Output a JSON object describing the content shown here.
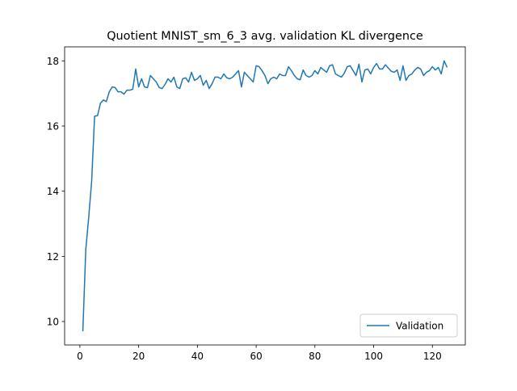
{
  "chart_data": {
    "type": "line",
    "title": "Quotient MNIST_sm_6_3 avg. validation KL divergence",
    "x": [
      1,
      2,
      3,
      4,
      5,
      6,
      7,
      8,
      9,
      10,
      11,
      12,
      13,
      14,
      15,
      16,
      17,
      18,
      19,
      20,
      21,
      22,
      23,
      24,
      25,
      26,
      27,
      28,
      29,
      30,
      31,
      32,
      33,
      34,
      35,
      36,
      37,
      38,
      39,
      40,
      41,
      42,
      43,
      44,
      45,
      46,
      47,
      48,
      49,
      50,
      51,
      52,
      53,
      54,
      55,
      56,
      57,
      58,
      59,
      60,
      61,
      62,
      63,
      64,
      65,
      66,
      67,
      68,
      69,
      70,
      71,
      72,
      73,
      74,
      75,
      76,
      77,
      78,
      79,
      80,
      81,
      82,
      83,
      84,
      85,
      86,
      87,
      88,
      89,
      90,
      91,
      92,
      93,
      94,
      95,
      96,
      97,
      98,
      99,
      100,
      101,
      102,
      103,
      104,
      105,
      106,
      107,
      108,
      109,
      110,
      111,
      112,
      113,
      114,
      115,
      116,
      117,
      118,
      119,
      120,
      121,
      122,
      123,
      124,
      125
    ],
    "series": [
      {
        "name": "Validation",
        "color": "#1f77b4",
        "values": [
          9.7,
          12.2,
          13.2,
          14.3,
          16.3,
          16.32,
          16.7,
          16.8,
          16.75,
          17.05,
          17.2,
          17.18,
          17.05,
          17.05,
          16.98,
          17.1,
          17.1,
          17.13,
          17.75,
          17.2,
          17.45,
          17.2,
          17.18,
          17.55,
          17.45,
          17.35,
          17.18,
          17.15,
          17.28,
          17.45,
          17.35,
          17.5,
          17.2,
          17.15,
          17.45,
          17.48,
          17.35,
          17.65,
          17.4,
          17.45,
          17.55,
          17.25,
          17.4,
          17.15,
          17.3,
          17.5,
          17.5,
          17.45,
          17.6,
          17.48,
          17.45,
          17.5,
          17.6,
          17.7,
          17.2,
          17.65,
          17.55,
          17.45,
          17.35,
          17.85,
          17.82,
          17.7,
          17.55,
          17.3,
          17.45,
          17.5,
          17.45,
          17.6,
          17.55,
          17.55,
          17.82,
          17.7,
          17.55,
          17.45,
          17.42,
          17.72,
          17.55,
          17.5,
          17.55,
          17.7,
          17.6,
          17.8,
          17.72,
          17.65,
          17.85,
          17.88,
          17.6,
          17.55,
          17.5,
          17.62,
          17.82,
          17.85,
          17.7,
          17.55,
          17.9,
          17.35,
          17.72,
          17.75,
          17.6,
          17.8,
          17.92,
          17.75,
          17.75,
          17.88,
          17.78,
          17.68,
          17.65,
          17.72,
          17.4,
          17.85,
          17.4,
          17.55,
          17.6,
          17.72,
          17.8,
          17.75,
          17.55,
          17.65,
          17.7,
          17.82,
          17.72,
          17.8,
          17.6,
          18.0,
          17.8
        ]
      }
    ],
    "xlim": [
      -5.2,
      131.2
    ],
    "ylim": [
      9.28,
      18.43
    ],
    "xticks": [
      0,
      20,
      40,
      60,
      80,
      100,
      120
    ],
    "yticks": [
      10,
      12,
      14,
      16,
      18
    ],
    "legend": "lower right"
  }
}
